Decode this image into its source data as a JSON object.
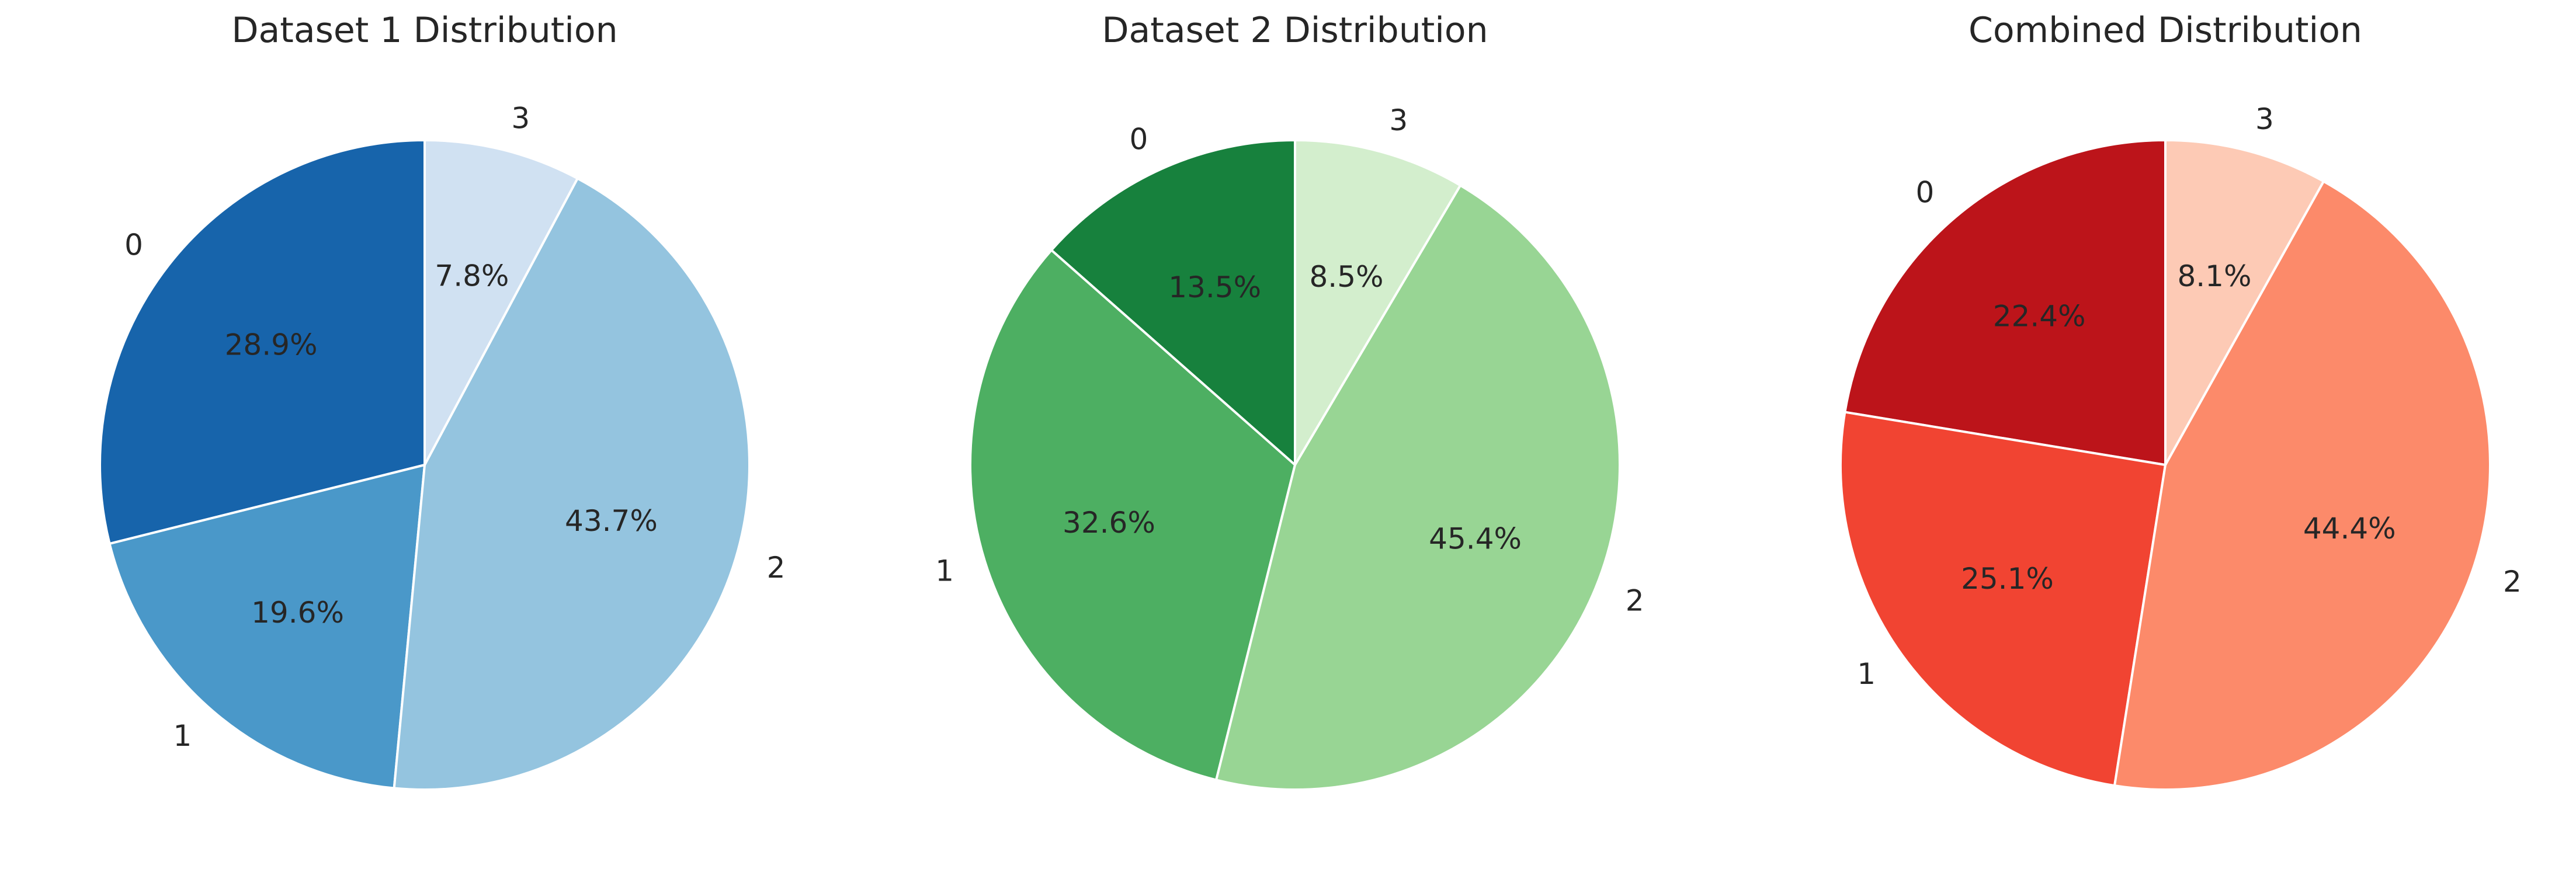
{
  "chart_data": [
    {
      "type": "pie",
      "title": "Dataset 1 Distribution",
      "categories": [
        "0",
        "1",
        "2",
        "3"
      ],
      "values": [
        28.9,
        19.6,
        43.7,
        7.8
      ],
      "value_labels": [
        "28.9%",
        "19.6%",
        "43.7%",
        "7.8%"
      ],
      "colors": [
        "#1764ab",
        "#4a98c9",
        "#94c4df",
        "#d0e1f2"
      ],
      "start_angle_deg": 90,
      "direction": "counterclockwise"
    },
    {
      "type": "pie",
      "title": "Dataset 2 Distribution",
      "categories": [
        "0",
        "1",
        "2",
        "3"
      ],
      "values": [
        13.5,
        32.6,
        45.4,
        8.5
      ],
      "value_labels": [
        "13.5%",
        "32.6%",
        "45.4%",
        "8.5%"
      ],
      "colors": [
        "#17813d",
        "#4daf62",
        "#98d594",
        "#d3eecd"
      ],
      "start_angle_deg": 90,
      "direction": "counterclockwise"
    },
    {
      "type": "pie",
      "title": "Combined Distribution",
      "categories": [
        "0",
        "1",
        "2",
        "3"
      ],
      "values": [
        22.4,
        25.1,
        44.4,
        8.1
      ],
      "value_labels": [
        "22.4%",
        "25.1%",
        "44.4%",
        "8.1%"
      ],
      "colors": [
        "#bc141a",
        "#f14432",
        "#fc8a6a",
        "#fdcab5"
      ],
      "start_angle_deg": 90,
      "direction": "counterclockwise"
    }
  ]
}
